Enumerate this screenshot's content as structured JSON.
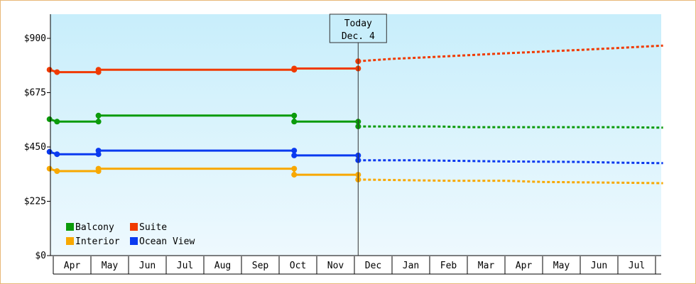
{
  "chart_data": {
    "type": "line",
    "title": "",
    "xlabel": "",
    "ylabel": "",
    "ylim": [
      0,
      1000
    ],
    "y_ticks": [
      {
        "value": 0,
        "label": "$0"
      },
      {
        "value": 225,
        "label": "$225"
      },
      {
        "value": 450,
        "label": "$450"
      },
      {
        "value": 675,
        "label": "$675"
      },
      {
        "value": 900,
        "label": "$900"
      }
    ],
    "months": [
      "Apr",
      "May",
      "Jun",
      "Jul",
      "Aug",
      "Sep",
      "Oct",
      "Nov",
      "Dec",
      "Jan",
      "Feb",
      "Mar",
      "Apr",
      "May",
      "Jun",
      "Jul"
    ],
    "x_domain": [
      -0.1,
      16.2
    ],
    "today": {
      "line1": "Today",
      "line2": "Dec. 4",
      "x": 8.1
    },
    "legend": {
      "placement": "bottom-left"
    },
    "grid": false,
    "series": [
      {
        "name": "Balcony",
        "color": "#0b9b0b",
        "actual": [
          [
            -0.1,
            565
          ],
          [
            0.1,
            555
          ],
          [
            1.2,
            555
          ],
          [
            1.2,
            580
          ],
          [
            6.4,
            580
          ],
          [
            6.4,
            555
          ],
          [
            8.1,
            555
          ]
        ],
        "markers": [
          [
            -0.1,
            565
          ],
          [
            0.1,
            555
          ],
          [
            1.2,
            555
          ],
          [
            1.2,
            580
          ],
          [
            6.4,
            580
          ],
          [
            6.4,
            555
          ],
          [
            8.1,
            555
          ],
          [
            8.1,
            535
          ]
        ],
        "forecast": [
          [
            8.1,
            535
          ],
          [
            10.2,
            535
          ],
          [
            11.0,
            532
          ],
          [
            13.0,
            532
          ],
          [
            15.0,
            532
          ],
          [
            16.2,
            530
          ]
        ]
      },
      {
        "name": "Suite",
        "color": "#f03a00",
        "actual": [
          [
            -0.1,
            770
          ],
          [
            0.1,
            760
          ],
          [
            1.2,
            760
          ],
          [
            1.2,
            770
          ],
          [
            6.4,
            770
          ],
          [
            6.4,
            775
          ],
          [
            8.1,
            775
          ]
        ],
        "markers": [
          [
            -0.1,
            770
          ],
          [
            0.1,
            760
          ],
          [
            1.2,
            760
          ],
          [
            1.2,
            770
          ],
          [
            6.4,
            770
          ],
          [
            6.4,
            775
          ],
          [
            8.1,
            775
          ],
          [
            8.1,
            805
          ]
        ],
        "forecast": [
          [
            8.1,
            805
          ],
          [
            9.0,
            815
          ],
          [
            10.0,
            822
          ],
          [
            11.0,
            830
          ],
          [
            12.0,
            838
          ],
          [
            13.0,
            845
          ],
          [
            14.0,
            852
          ],
          [
            15.0,
            860
          ],
          [
            16.2,
            870
          ]
        ]
      },
      {
        "name": "Interior",
        "color": "#f8a800",
        "actual": [
          [
            -0.1,
            360
          ],
          [
            0.1,
            350
          ],
          [
            1.2,
            350
          ],
          [
            1.2,
            360
          ],
          [
            6.4,
            360
          ],
          [
            6.4,
            335
          ],
          [
            8.1,
            335
          ]
        ],
        "markers": [
          [
            -0.1,
            360
          ],
          [
            0.1,
            350
          ],
          [
            1.2,
            350
          ],
          [
            1.2,
            360
          ],
          [
            6.4,
            360
          ],
          [
            6.4,
            335
          ],
          [
            8.1,
            335
          ],
          [
            8.1,
            315
          ]
        ],
        "forecast": [
          [
            8.1,
            315
          ],
          [
            9.5,
            312
          ],
          [
            10.5,
            310
          ],
          [
            12.0,
            310
          ],
          [
            13.0,
            305
          ],
          [
            15.0,
            302
          ],
          [
            16.2,
            300
          ]
        ]
      },
      {
        "name": "Ocean View",
        "color": "#0a3af0",
        "actual": [
          [
            -0.1,
            430
          ],
          [
            0.1,
            420
          ],
          [
            1.2,
            420
          ],
          [
            1.2,
            435
          ],
          [
            6.4,
            435
          ],
          [
            6.4,
            415
          ],
          [
            8.1,
            415
          ]
        ],
        "markers": [
          [
            -0.1,
            430
          ],
          [
            0.1,
            420
          ],
          [
            1.2,
            420
          ],
          [
            1.2,
            435
          ],
          [
            6.4,
            435
          ],
          [
            6.4,
            415
          ],
          [
            8.1,
            415
          ],
          [
            8.1,
            395
          ]
        ],
        "forecast": [
          [
            8.1,
            395
          ],
          [
            9.5,
            395
          ],
          [
            11.0,
            392
          ],
          [
            12.0,
            390
          ],
          [
            14.0,
            388
          ],
          [
            15.0,
            385
          ],
          [
            16.2,
            383
          ]
        ]
      }
    ]
  }
}
